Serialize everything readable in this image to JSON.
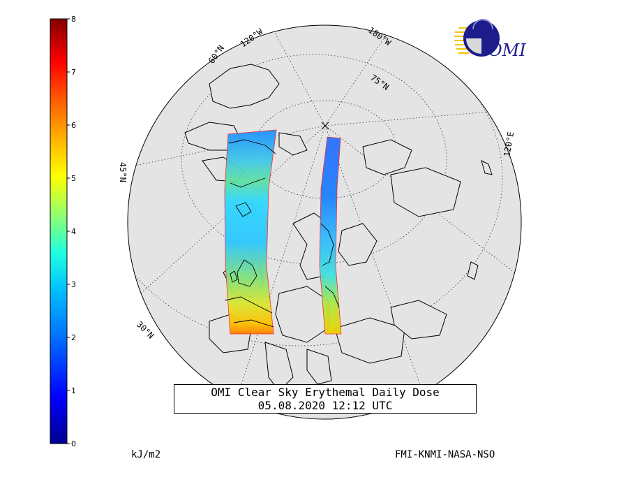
{
  "colorbar": {
    "ticks": [
      "0",
      "1",
      "2",
      "3",
      "4",
      "5",
      "6",
      "7",
      "8"
    ],
    "colors": [
      "#00008f",
      "#0000ff",
      "#0060ff",
      "#00bfff",
      "#20ffdf",
      "#7fff7f",
      "#dfff20",
      "#ffbf00",
      "#ff6000",
      "#ff0000",
      "#8f0000"
    ],
    "units": "kJ/m2"
  },
  "map_labels": {
    "lon_120w": "120°W",
    "lon_180w": "180°W",
    "lon_120e": "120°E",
    "lat_60n": "60°N",
    "lat_75n": "75°N",
    "lat_45n": "45°N",
    "lat_30n": "30°N"
  },
  "title": {
    "line1": "OMI Clear Sky Erythemal Daily Dose",
    "line2": "05.08.2020 12:12 UTC"
  },
  "credit": "FMI-KNMI-NASA-NSO",
  "logo": {
    "text": "OMI",
    "color_dark": "#1c1c8a",
    "color_accent": "#f2c300"
  },
  "colors": {
    "globe": "#e4e4e4",
    "outline": "#000000"
  }
}
